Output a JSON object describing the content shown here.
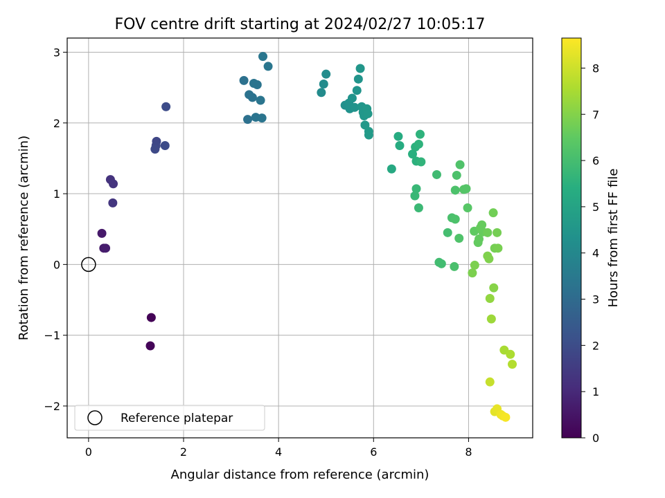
{
  "chart_data": {
    "type": "scatter",
    "title": "FOV centre drift starting at 2024/02/27 10:05:17",
    "xlabel": "Angular distance from reference (arcmin)",
    "ylabel": "Rotation from reference (arcmin)",
    "xlim": [
      -0.45,
      9.35
    ],
    "ylim": [
      -2.45,
      3.2
    ],
    "xticks": [
      "0",
      "2",
      "4",
      "6",
      "8"
    ],
    "xtick_values": [
      0,
      2,
      4,
      6,
      8
    ],
    "yticks": [
      "−2",
      "−1",
      "0",
      "1",
      "2",
      "3"
    ],
    "ytick_values": [
      -2,
      -1,
      0,
      1,
      2,
      3
    ],
    "grid": true,
    "legend": {
      "placement": "lower-left",
      "entries": [
        "Reference platepar"
      ]
    },
    "reference_point": {
      "x": 0,
      "y": 0
    },
    "colorbar": {
      "label": "Hours from first FF file",
      "min": 0,
      "max": 8.65,
      "ticks": [
        "0",
        "1",
        "2",
        "3",
        "4",
        "5",
        "6",
        "7",
        "8"
      ],
      "tick_values": [
        0,
        1,
        2,
        3,
        4,
        5,
        6,
        7,
        8
      ],
      "colormap": "viridis"
    },
    "points": [
      {
        "x": 1.32,
        "y": -0.75,
        "h": 0.05
      },
      {
        "x": 1.3,
        "y": -1.15,
        "h": 0.1
      },
      {
        "x": 0.28,
        "y": 0.44,
        "h": 0.6
      },
      {
        "x": 0.32,
        "y": 0.23,
        "h": 0.65
      },
      {
        "x": 0.36,
        "y": 0.23,
        "h": 0.7
      },
      {
        "x": 0.46,
        "y": 1.2,
        "h": 1.25
      },
      {
        "x": 0.52,
        "y": 1.14,
        "h": 1.3
      },
      {
        "x": 0.51,
        "y": 0.87,
        "h": 1.35
      },
      {
        "x": 1.43,
        "y": 1.74,
        "h": 1.8
      },
      {
        "x": 1.42,
        "y": 1.68,
        "h": 1.85
      },
      {
        "x": 1.4,
        "y": 1.63,
        "h": 1.9
      },
      {
        "x": 1.61,
        "y": 1.68,
        "h": 1.95
      },
      {
        "x": 1.63,
        "y": 2.23,
        "h": 2.0
      },
      {
        "x": 3.27,
        "y": 2.6,
        "h": 3.2
      },
      {
        "x": 3.35,
        "y": 2.05,
        "h": 3.2
      },
      {
        "x": 3.38,
        "y": 2.4,
        "h": 3.25
      },
      {
        "x": 3.45,
        "y": 2.36,
        "h": 3.25
      },
      {
        "x": 3.48,
        "y": 2.56,
        "h": 3.3
      },
      {
        "x": 3.52,
        "y": 2.08,
        "h": 3.3
      },
      {
        "x": 3.55,
        "y": 2.54,
        "h": 3.3
      },
      {
        "x": 3.62,
        "y": 2.32,
        "h": 3.35
      },
      {
        "x": 3.65,
        "y": 2.07,
        "h": 3.35
      },
      {
        "x": 3.67,
        "y": 2.94,
        "h": 3.4
      },
      {
        "x": 3.78,
        "y": 2.8,
        "h": 3.4
      },
      {
        "x": 4.9,
        "y": 2.43,
        "h": 4.1
      },
      {
        "x": 4.95,
        "y": 2.55,
        "h": 4.1
      },
      {
        "x": 5.0,
        "y": 2.69,
        "h": 4.15
      },
      {
        "x": 5.4,
        "y": 2.25,
        "h": 4.3
      },
      {
        "x": 5.48,
        "y": 2.28,
        "h": 4.35
      },
      {
        "x": 5.5,
        "y": 2.2,
        "h": 4.35
      },
      {
        "x": 5.55,
        "y": 2.35,
        "h": 4.4
      },
      {
        "x": 5.6,
        "y": 2.22,
        "h": 4.4
      },
      {
        "x": 5.65,
        "y": 2.46,
        "h": 4.45
      },
      {
        "x": 5.68,
        "y": 2.62,
        "h": 4.45
      },
      {
        "x": 5.72,
        "y": 2.77,
        "h": 4.5
      },
      {
        "x": 5.75,
        "y": 2.23,
        "h": 4.5
      },
      {
        "x": 5.78,
        "y": 2.15,
        "h": 4.55
      },
      {
        "x": 5.8,
        "y": 2.1,
        "h": 4.55
      },
      {
        "x": 5.82,
        "y": 1.97,
        "h": 4.6
      },
      {
        "x": 5.86,
        "y": 2.2,
        "h": 4.6
      },
      {
        "x": 5.88,
        "y": 2.13,
        "h": 4.6
      },
      {
        "x": 5.9,
        "y": 1.88,
        "h": 4.65
      },
      {
        "x": 5.9,
        "y": 1.83,
        "h": 4.65
      },
      {
        "x": 6.38,
        "y": 1.35,
        "h": 5.2
      },
      {
        "x": 6.52,
        "y": 1.81,
        "h": 5.3
      },
      {
        "x": 6.55,
        "y": 1.68,
        "h": 5.3
      },
      {
        "x": 6.82,
        "y": 1.56,
        "h": 5.45
      },
      {
        "x": 6.88,
        "y": 1.66,
        "h": 5.5
      },
      {
        "x": 6.9,
        "y": 1.46,
        "h": 5.5
      },
      {
        "x": 6.95,
        "y": 1.7,
        "h": 5.55
      },
      {
        "x": 6.98,
        "y": 1.84,
        "h": 5.55
      },
      {
        "x": 7.0,
        "y": 1.45,
        "h": 5.6
      },
      {
        "x": 6.87,
        "y": 0.97,
        "h": 5.75
      },
      {
        "x": 6.9,
        "y": 1.07,
        "h": 5.75
      },
      {
        "x": 6.95,
        "y": 0.8,
        "h": 5.8
      },
      {
        "x": 7.33,
        "y": 1.27,
        "h": 5.9
      },
      {
        "x": 7.38,
        "y": 0.03,
        "h": 5.95
      },
      {
        "x": 7.43,
        "y": 0.01,
        "h": 5.95
      },
      {
        "x": 7.56,
        "y": 0.45,
        "h": 6.0
      },
      {
        "x": 7.65,
        "y": 0.66,
        "h": 6.1
      },
      {
        "x": 7.7,
        "y": -0.03,
        "h": 6.1
      },
      {
        "x": 7.72,
        "y": 0.64,
        "h": 6.15
      },
      {
        "x": 7.72,
        "y": 1.05,
        "h": 6.15
      },
      {
        "x": 7.75,
        "y": 1.26,
        "h": 6.15
      },
      {
        "x": 7.8,
        "y": 0.37,
        "h": 6.2
      },
      {
        "x": 7.82,
        "y": 1.41,
        "h": 6.2
      },
      {
        "x": 7.9,
        "y": 1.06,
        "h": 6.3
      },
      {
        "x": 7.95,
        "y": 1.07,
        "h": 6.3
      },
      {
        "x": 7.98,
        "y": 0.8,
        "h": 6.35
      },
      {
        "x": 8.12,
        "y": 0.47,
        "h": 6.5
      },
      {
        "x": 8.2,
        "y": 0.31,
        "h": 6.55
      },
      {
        "x": 8.22,
        "y": 0.36,
        "h": 6.55
      },
      {
        "x": 8.25,
        "y": 0.52,
        "h": 6.6
      },
      {
        "x": 8.28,
        "y": 0.56,
        "h": 6.6
      },
      {
        "x": 8.3,
        "y": 0.46,
        "h": 6.6
      },
      {
        "x": 8.4,
        "y": 0.45,
        "h": 6.7
      },
      {
        "x": 8.52,
        "y": 0.73,
        "h": 6.75
      },
      {
        "x": 8.55,
        "y": 0.23,
        "h": 6.8
      },
      {
        "x": 8.6,
        "y": 0.45,
        "h": 6.8
      },
      {
        "x": 8.62,
        "y": 0.23,
        "h": 6.85
      },
      {
        "x": 8.08,
        "y": -0.12,
        "h": 6.9
      },
      {
        "x": 8.13,
        "y": -0.01,
        "h": 6.9
      },
      {
        "x": 8.4,
        "y": 0.12,
        "h": 6.95
      },
      {
        "x": 8.43,
        "y": 0.08,
        "h": 6.95
      },
      {
        "x": 8.53,
        "y": -0.33,
        "h": 7.05
      },
      {
        "x": 8.45,
        "y": -0.48,
        "h": 7.2
      },
      {
        "x": 8.48,
        "y": -0.77,
        "h": 7.35
      },
      {
        "x": 8.75,
        "y": -1.21,
        "h": 7.5
      },
      {
        "x": 8.88,
        "y": -1.27,
        "h": 7.55
      },
      {
        "x": 8.92,
        "y": -1.41,
        "h": 7.65
      },
      {
        "x": 8.45,
        "y": -1.66,
        "h": 7.9
      },
      {
        "x": 8.55,
        "y": -2.08,
        "h": 8.3
      },
      {
        "x": 8.6,
        "y": -2.04,
        "h": 8.35
      },
      {
        "x": 8.68,
        "y": -2.12,
        "h": 8.45
      },
      {
        "x": 8.72,
        "y": -2.14,
        "h": 8.5
      },
      {
        "x": 8.78,
        "y": -2.16,
        "h": 8.55
      }
    ]
  }
}
